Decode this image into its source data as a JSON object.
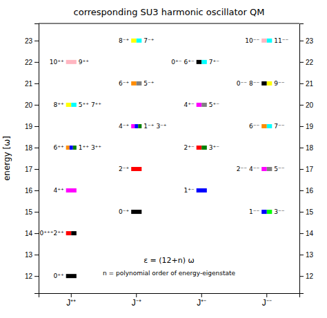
{
  "chart_data": {
    "type": "levels",
    "title": "corresponding SU3 harmonic oscillator QM",
    "ylabel": "energy [ω]",
    "categories": [
      "J⁺⁺",
      "J⁻⁺",
      "J⁺⁻",
      "J⁻⁻"
    ],
    "ylim": [
      11.2,
      23.8
    ],
    "yticks": [
      12,
      13,
      14,
      15,
      16,
      17,
      18,
      19,
      20,
      21,
      22,
      23
    ],
    "y2lim": [
      11.2,
      23.8
    ],
    "y2ticks": [
      12,
      13,
      14,
      15,
      16,
      17,
      18,
      19,
      20,
      21,
      22,
      23
    ],
    "grid": false,
    "annotations": [
      "ε = (12+n) ω",
      "n = polynomial order of energy-eigenstate"
    ],
    "levels": [
      [
        {
          "value": 12,
          "colors": [
            "#000000"
          ],
          "label_left": "0⁺⁺"
        },
        {
          "value": 14,
          "colors": [
            "#ff0000",
            "#000000"
          ],
          "label_left": "0⁺⁺⁺2⁺⁺"
        },
        {
          "value": 16,
          "colors": [
            "#ff00ff"
          ],
          "label_left": "4⁺⁺"
        },
        {
          "value": 18,
          "colors": [
            "#ff8c00",
            "#0000ff",
            "#008000"
          ],
          "label_left": "6⁺⁺",
          "label_right": "1⁺⁺ 3⁺⁺"
        },
        {
          "value": 20,
          "colors": [
            "#ffff00",
            "#00ffff"
          ],
          "label_left": "8⁺⁺",
          "label_right": "5⁺⁺ 7⁺⁺"
        },
        {
          "value": 22,
          "colors": [
            "#ffb6c1"
          ],
          "label_left": "10⁺⁺",
          "label_right": "9⁺⁺"
        }
      ],
      [
        {
          "value": 15,
          "colors": [
            "#000000"
          ],
          "label_left": "0⁻⁺"
        },
        {
          "value": 17,
          "colors": [
            "#ff0000"
          ],
          "label_left": "2⁻⁺"
        },
        {
          "value": 19,
          "colors": [
            "#ff00ff",
            "#0000ff",
            "#008000"
          ],
          "label_left": "4⁻⁺",
          "label_right": "1⁻⁺ 3⁻⁺"
        },
        {
          "value": 21,
          "colors": [
            "#ff8c00",
            "#808080"
          ],
          "label_left": "6⁻⁺",
          "label_right": "5⁻⁺"
        },
        {
          "value": 23,
          "colors": [
            "#ffff00",
            "#00ffff"
          ],
          "label_left": "8⁻⁺",
          "label_right": "7⁻⁺"
        }
      ],
      [
        {
          "value": 16,
          "colors": [
            "#0000ff"
          ],
          "label_left": "1⁺⁻"
        },
        {
          "value": 18,
          "colors": [
            "#ff0000",
            "#008000"
          ],
          "label_left": "2⁺⁻",
          "label_right": "3⁺⁻"
        },
        {
          "value": 20,
          "colors": [
            "#ff00ff",
            "#808080"
          ],
          "label_left": "4⁺⁻",
          "label_right": "5⁺⁻"
        },
        {
          "value": 22,
          "colors": [
            "#000000",
            "#00ffff"
          ],
          "label_left": "0⁺⁻ 6⁺⁻",
          "label_right": "7⁺⁻"
        }
      ],
      [
        {
          "value": 15,
          "colors": [
            "#0000ff",
            "#00ff00"
          ],
          "label_left": "1⁻⁻",
          "label_right": "3⁻⁻"
        },
        {
          "value": 17,
          "colors": [
            "#ff00ff",
            "#808080"
          ],
          "label_left": "2⁻⁻ 4⁻⁻",
          "label_right": "5⁻⁻"
        },
        {
          "value": 19,
          "colors": [
            "#ff8c00",
            "#00ffff"
          ],
          "label_left": "6⁻⁻",
          "label_right": "7⁻⁻"
        },
        {
          "value": 21,
          "colors": [
            "#000000",
            "#ffff00"
          ],
          "label_left": "0⁻⁻ 8⁻⁻",
          "label_right": "9⁻⁻"
        },
        {
          "value": 23,
          "colors": [
            "#ffb6c1",
            "#00ffff"
          ],
          "label_left": "10⁻⁻",
          "label_right": "11⁻⁻"
        }
      ]
    ]
  }
}
